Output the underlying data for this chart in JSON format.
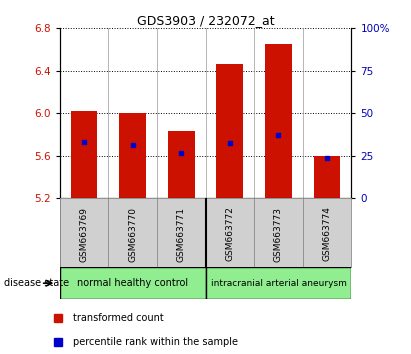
{
  "title": "GDS3903 / 232072_at",
  "samples": [
    "GSM663769",
    "GSM663770",
    "GSM663771",
    "GSM663772",
    "GSM663773",
    "GSM663774"
  ],
  "bar_tops": [
    6.02,
    6.0,
    5.83,
    6.46,
    6.65,
    5.6
  ],
  "bar_bottom": 5.2,
  "percentile_values": [
    5.73,
    5.7,
    5.63,
    5.72,
    5.8,
    5.575
  ],
  "ylim_left": [
    5.2,
    6.8
  ],
  "ylim_right": [
    0,
    100
  ],
  "yticks_left": [
    5.2,
    5.6,
    6.0,
    6.4,
    6.8
  ],
  "yticks_right": [
    0,
    25,
    50,
    75,
    100
  ],
  "bar_color": "#cc1100",
  "percentile_color": "#0000cc",
  "group1_label": "normal healthy control",
  "group2_label": "intracranial arterial aneurysm",
  "group_color": "#90ee90",
  "disease_state_label": "disease state",
  "legend_red_label": "transformed count",
  "legend_blue_label": "percentile rank within the sample",
  "xlabel_color_left": "#cc1100",
  "xlabel_color_right": "#0000bb",
  "sample_box_color": "#d0d0d0",
  "plot_bg": "#ffffff",
  "title_fontsize": 9,
  "tick_fontsize": 7.5,
  "sample_fontsize": 6.5,
  "group_fontsize": 7,
  "legend_fontsize": 7
}
